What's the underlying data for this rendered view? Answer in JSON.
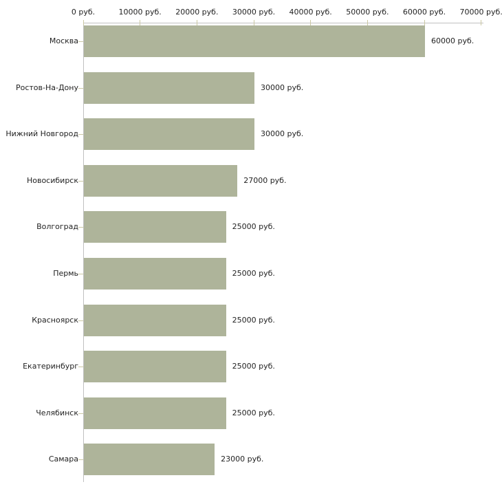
{
  "chart_data": {
    "type": "bar",
    "orientation": "horizontal",
    "title": "",
    "xlabel": "",
    "ylabel": "",
    "unit": "руб.",
    "categories": [
      "Москва",
      "Ростов-На-Дону",
      "Нижний Новгород",
      "Новосибирск",
      "Волгоград",
      "Пермь",
      "Красноярск",
      "Екатеринбург",
      "Челябинск",
      "Самара"
    ],
    "values": [
      60000,
      30000,
      30000,
      27000,
      25000,
      25000,
      25000,
      25000,
      25000,
      23000
    ],
    "value_labels": [
      "60000 руб.",
      "30000 руб.",
      "30000 руб.",
      "27000 руб.",
      "25000 руб.",
      "25000 руб.",
      "25000 руб.",
      "25000 руб.",
      "25000 руб.",
      "23000 руб."
    ],
    "x_axis": {
      "position": "top",
      "range": [
        0,
        70000
      ],
      "ticks": [
        0,
        10000,
        20000,
        30000,
        40000,
        50000,
        60000,
        70000
      ],
      "tick_labels": [
        "0 руб.",
        "10000 руб.",
        "20000 руб.",
        "30000 руб.",
        "40000 руб.",
        "50000 руб.",
        "60000 руб.",
        "70000 руб."
      ]
    },
    "grid": false,
    "legend": false,
    "colors": {
      "bar": "#aeb49a",
      "axis_line": "#c0c0c0",
      "tick_mark": "#cbc8a3",
      "text": "#222222",
      "background": "#ffffff"
    }
  }
}
